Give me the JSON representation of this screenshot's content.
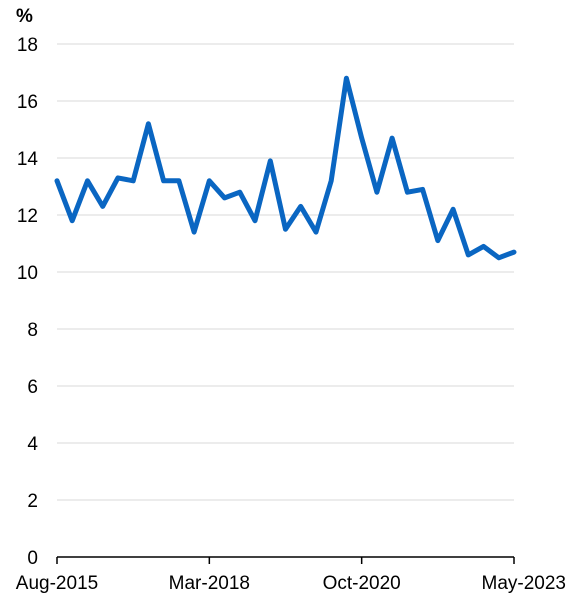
{
  "chart_data": {
    "type": "line",
    "unit_label": "%",
    "title": "",
    "xlabel": "",
    "ylabel": "",
    "ylim": [
      0,
      18
    ],
    "yticks": [
      0,
      2,
      4,
      6,
      8,
      10,
      12,
      14,
      16,
      18
    ],
    "grid": true,
    "legend": "none",
    "x_tick_labels": [
      "Aug-2015",
      "Mar-2018",
      "Oct-2020",
      "May-2023"
    ],
    "x_tick_index": [
      0,
      10,
      20,
      30
    ],
    "colors": {
      "line": "#0a66c2",
      "grid": "#d9d9d9",
      "axis": "#000000"
    },
    "series": [
      {
        "name": "",
        "x": [
          "Aug-2015",
          "Nov-2015",
          "Feb-2016",
          "May-2016",
          "Aug-2016",
          "Nov-2016",
          "Feb-2017",
          "May-2017",
          "Aug-2017",
          "Nov-2017",
          "Mar-2018",
          "Jun-2018",
          "Sep-2018",
          "Dec-2018",
          "Mar-2019",
          "Jun-2019",
          "Sep-2019",
          "Dec-2019",
          "Mar-2020",
          "Jun-2020",
          "Oct-2020",
          "Jan-2021",
          "Apr-2021",
          "Jul-2021",
          "Oct-2021",
          "Jan-2022",
          "Apr-2022",
          "Jul-2022",
          "Oct-2022",
          "Jan-2023",
          "May-2023"
        ],
        "values": [
          13.2,
          11.8,
          13.2,
          12.3,
          13.3,
          13.2,
          15.2,
          13.2,
          13.2,
          11.4,
          13.2,
          12.6,
          12.8,
          11.8,
          13.9,
          11.5,
          12.3,
          11.4,
          13.2,
          16.8,
          14.7,
          12.8,
          14.7,
          12.8,
          12.9,
          11.1,
          12.2,
          10.6,
          10.9,
          10.5,
          10.7
        ]
      }
    ]
  }
}
